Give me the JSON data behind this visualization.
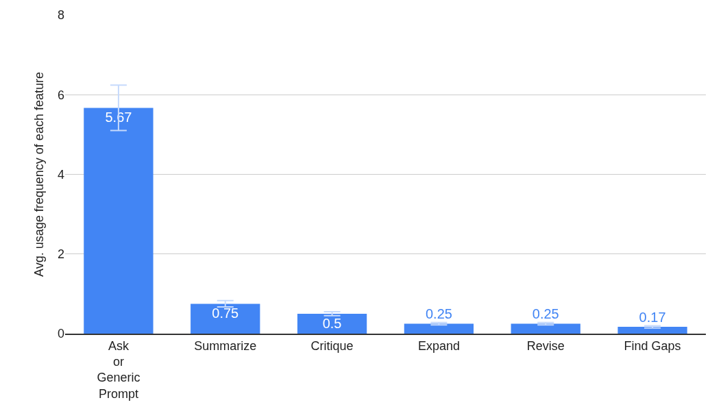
{
  "chart_data": {
    "type": "bar",
    "ylabel": "Avg. usage frequency of each feature",
    "categories": [
      "Ask or Generic Prompt",
      "Summarize",
      "Critique",
      "Expand",
      "Revise",
      "Find Gaps"
    ],
    "values": [
      5.67,
      0.75,
      0.5,
      0.25,
      0.25,
      0.17
    ],
    "errors": [
      0.57,
      0.08,
      0.05,
      0.03,
      0.03,
      0.03
    ],
    "color": "#4285f4",
    "ylim": [
      0,
      8
    ],
    "yticks": [
      0,
      2,
      4,
      6,
      8
    ],
    "grid": "y",
    "data_labels": true
  }
}
